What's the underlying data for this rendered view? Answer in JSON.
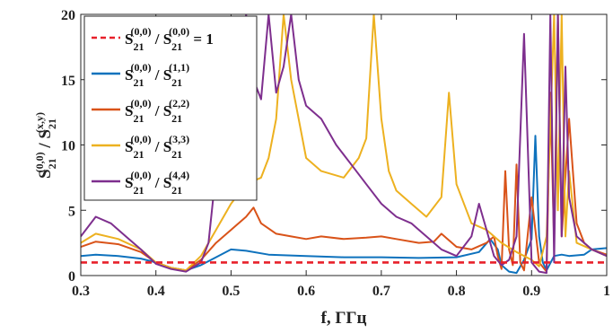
{
  "chart_data": {
    "type": "line",
    "xlabel": "f, ГГц",
    "ylabel": {
      "base": "S",
      "sub": "21",
      "sup_num": "(0,0)",
      "slash": " / ",
      "sup_den": "(x,y)"
    },
    "xlim": [
      0.3,
      1.0
    ],
    "ylim": [
      0,
      20
    ],
    "x_ticks": [
      "0.3",
      "0.4",
      "0.5",
      "0.6",
      "0.7",
      "0.8",
      "0.9",
      "1"
    ],
    "y_ticks": [
      "0",
      "5",
      "10",
      "15",
      "20"
    ],
    "grid": false,
    "legend_position": "top-left",
    "series": [
      {
        "name": "S21(0,0) / S21(0,0) = 1",
        "legend": {
          "num": "(0,0)",
          "den": "(0,0)",
          "suffix": " = 1"
        },
        "color": "#e8202a",
        "dashed": true,
        "x": [
          0.3,
          1.0
        ],
        "y": [
          1,
          1
        ]
      },
      {
        "name": "S21(0,0) / S21(1,1)",
        "legend": {
          "num": "(0,0)",
          "den": "(1,1)",
          "suffix": ""
        },
        "color": "#0e72bd",
        "dashed": false,
        "x": [
          0.3,
          0.32,
          0.35,
          0.38,
          0.4,
          0.42,
          0.44,
          0.46,
          0.48,
          0.5,
          0.52,
          0.55,
          0.6,
          0.65,
          0.7,
          0.75,
          0.8,
          0.83,
          0.845,
          0.855,
          0.86,
          0.87,
          0.88,
          0.89,
          0.9,
          0.905,
          0.91,
          0.915,
          0.92,
          0.93,
          0.94,
          0.95,
          0.97,
          0.98,
          1.0
        ],
        "y": [
          1.5,
          1.6,
          1.5,
          1.3,
          1.0,
          0.6,
          0.4,
          0.8,
          1.4,
          2.0,
          1.9,
          1.6,
          1.5,
          1.4,
          1.4,
          1.35,
          1.4,
          1.8,
          2.8,
          2.0,
          0.8,
          0.3,
          0.2,
          1.2,
          2.8,
          10.7,
          3.0,
          1.0,
          0.4,
          1.5,
          1.6,
          1.5,
          1.6,
          2.0,
          2.1
        ]
      },
      {
        "name": "S21(0,0) / S21(2,2)",
        "legend": {
          "num": "(0,0)",
          "den": "(2,2)",
          "suffix": ""
        },
        "color": "#d95319",
        "dashed": false,
        "x": [
          0.3,
          0.32,
          0.35,
          0.38,
          0.4,
          0.42,
          0.44,
          0.46,
          0.48,
          0.5,
          0.52,
          0.53,
          0.54,
          0.56,
          0.58,
          0.6,
          0.62,
          0.65,
          0.68,
          0.7,
          0.72,
          0.75,
          0.77,
          0.78,
          0.8,
          0.82,
          0.84,
          0.85,
          0.855,
          0.86,
          0.865,
          0.87,
          0.875,
          0.88,
          0.885,
          0.89,
          0.9,
          0.91,
          0.92,
          0.925,
          0.93,
          0.935,
          0.94,
          0.95,
          0.96,
          0.97,
          0.98,
          1.0
        ],
        "y": [
          2.2,
          2.6,
          2.4,
          1.8,
          1.0,
          0.6,
          0.4,
          1.2,
          2.5,
          3.5,
          4.5,
          5.2,
          4.0,
          3.2,
          3.0,
          2.8,
          3.0,
          2.8,
          2.9,
          3.0,
          2.8,
          2.5,
          2.6,
          3.2,
          2.2,
          2.0,
          2.5,
          3.0,
          1.5,
          0.5,
          8.0,
          2.0,
          0.8,
          8.5,
          1.0,
          0.4,
          6.0,
          1.0,
          0.3,
          14.0,
          2.5,
          20.0,
          3.0,
          12.0,
          4.0,
          2.5,
          2.0,
          1.6
        ]
      },
      {
        "name": "S21(0,0) / S21(3,3)",
        "legend": {
          "num": "(0,0)",
          "den": "(3,3)",
          "suffix": ""
        },
        "color": "#edb120",
        "dashed": false,
        "x": [
          0.3,
          0.32,
          0.35,
          0.38,
          0.4,
          0.42,
          0.44,
          0.46,
          0.48,
          0.5,
          0.52,
          0.54,
          0.55,
          0.56,
          0.57,
          0.58,
          0.6,
          0.62,
          0.65,
          0.67,
          0.68,
          0.69,
          0.7,
          0.71,
          0.72,
          0.74,
          0.76,
          0.78,
          0.79,
          0.8,
          0.82,
          0.84,
          0.86,
          0.88,
          0.9,
          0.91,
          0.92,
          0.93,
          0.935,
          0.94,
          0.945,
          0.95,
          0.96,
          0.98,
          1.0
        ],
        "y": [
          2.5,
          3.2,
          2.8,
          2.0,
          1.0,
          0.6,
          0.4,
          1.5,
          3.5,
          5.5,
          7.0,
          7.5,
          9.0,
          12.0,
          20.0,
          15.0,
          9.0,
          8.0,
          7.5,
          9.0,
          10.5,
          20.0,
          12.0,
          8.0,
          6.5,
          5.5,
          4.5,
          6.0,
          14.0,
          7.0,
          4.0,
          3.5,
          2.5,
          1.8,
          1.2,
          0.7,
          3.0,
          20.0,
          5.0,
          20.0,
          3.0,
          8.0,
          2.5,
          2.0,
          1.5
        ]
      },
      {
        "name": "S21(0,0) / S21(4,4)",
        "legend": {
          "num": "(0,0)",
          "den": "(4,4)",
          "suffix": ""
        },
        "color": "#7e2f8e",
        "dashed": false,
        "x": [
          0.3,
          0.32,
          0.34,
          0.36,
          0.38,
          0.4,
          0.42,
          0.44,
          0.46,
          0.47,
          0.48,
          0.49,
          0.5,
          0.51,
          0.52,
          0.53,
          0.54,
          0.55,
          0.56,
          0.57,
          0.58,
          0.59,
          0.6,
          0.62,
          0.64,
          0.66,
          0.68,
          0.7,
          0.72,
          0.74,
          0.76,
          0.78,
          0.8,
          0.82,
          0.83,
          0.84,
          0.85,
          0.86,
          0.87,
          0.88,
          0.89,
          0.9,
          0.91,
          0.92,
          0.925,
          0.93,
          0.935,
          0.94,
          0.945,
          0.95,
          0.96,
          0.98,
          1.0
        ],
        "y": [
          3.0,
          4.5,
          4.0,
          3.0,
          2.0,
          0.9,
          0.5,
          0.3,
          1.0,
          2.5,
          8.0,
          6.0,
          10.0,
          12.0,
          20.0,
          15.0,
          13.5,
          20.0,
          14.0,
          16.0,
          20.0,
          15.0,
          13.0,
          12.0,
          10.0,
          8.5,
          7.0,
          5.5,
          4.5,
          4.0,
          3.0,
          2.0,
          1.5,
          3.0,
          5.5,
          3.5,
          1.5,
          0.8,
          1.2,
          3.0,
          18.5,
          1.0,
          0.3,
          0.2,
          20.0,
          1.0,
          20.0,
          3.0,
          16.0,
          6.0,
          3.0,
          2.0,
          1.5
        ]
      }
    ]
  }
}
